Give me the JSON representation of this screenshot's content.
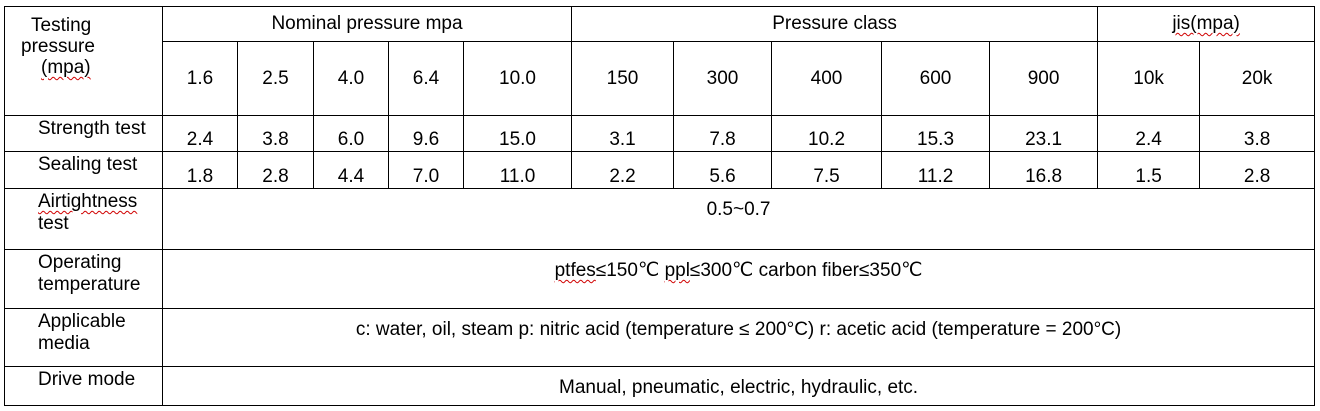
{
  "header": {
    "corner": [
      "Testing",
      "pressure",
      "(mpa)"
    ],
    "groups": [
      "Nominal pressure mpa",
      "Pressure class",
      "jis(mpa)"
    ],
    "columns": [
      "1.6",
      "2.5",
      "4.0",
      "6.4",
      "10.0",
      "150",
      "300",
      "400",
      "600",
      "900",
      "10k",
      "20k"
    ]
  },
  "rows": [
    {
      "label": "Strength test",
      "values": [
        "2.4",
        "3.8",
        "6.0",
        "9.6",
        "15.0",
        "3.1",
        "7.8",
        "10.2",
        "15.3",
        "23.1",
        "2.4",
        "3.8"
      ]
    },
    {
      "label": "Sealing test",
      "values": [
        "1.8",
        "2.8",
        "4.4",
        "7.0",
        "11.0",
        "2.2",
        "5.6",
        "7.5",
        "11.2",
        "16.8",
        "1.5",
        "2.8"
      ]
    }
  ],
  "spans": {
    "airtightness": {
      "label": [
        "Airtightness",
        "test"
      ],
      "value": "0.5~0.7"
    },
    "temperature": {
      "label": [
        "Operating",
        "temperature"
      ],
      "value_parts": [
        "ptfes",
        "≤150℃ ",
        "ppl",
        "≤300℃ carbon fiber≤350℃"
      ]
    },
    "media": {
      "label": [
        "Applicable",
        "media"
      ],
      "value": "c: water, oil, steam p: nitric acid (temperature ≤ 200°C) r: acetic acid (temperature = 200°C)"
    },
    "drive": {
      "label": "Drive mode",
      "value": "Manual, pneumatic, electric, hydraulic, etc."
    }
  }
}
